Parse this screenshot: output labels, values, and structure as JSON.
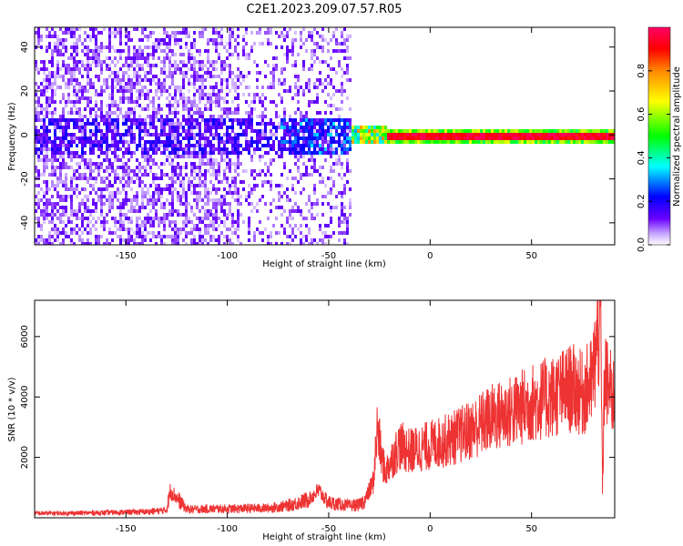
{
  "figure": {
    "title": "C2E1.2023.209.07.57.R05"
  },
  "chart_data": [
    {
      "type": "heatmap",
      "xlabel": "Height of straight line (km)",
      "ylabel": "Frequency (Hz)",
      "xlim": [
        -195,
        91
      ],
      "ylim": [
        -50,
        49
      ],
      "x_ticks": [
        -150,
        -100,
        -50,
        0,
        50
      ],
      "y_ticks": [
        -40,
        -20,
        0,
        20,
        40
      ],
      "colorbar": {
        "label": "Normalized spectral amplitude",
        "range": [
          0,
          1
        ],
        "ticks": [
          0.0,
          0.2,
          0.4,
          0.6,
          0.8
        ],
        "colors": [
          "#ffffff",
          "#c9a8ff",
          "#6a00ff",
          "#0000ff",
          "#00ffff",
          "#00ff00",
          "#ffff00",
          "#ff8800",
          "#ff0000",
          "#ff0066"
        ]
      },
      "description_regions": [
        {
          "x_range": [
            -195,
            -40
          ],
          "y_range": [
            -50,
            49
          ],
          "amplitude": "low scattered (0.05-0.2)"
        },
        {
          "x_range": [
            -75,
            -40
          ],
          "y_range": [
            -8,
            10
          ],
          "amplitude": "moderate (0.2-0.4)"
        },
        {
          "x_range": [
            -40,
            -20
          ],
          "y_range": [
            -3,
            5
          ],
          "amplitude": "rising (0.4-0.8)"
        },
        {
          "x_range": [
            -20,
            91
          ],
          "y_range": [
            -2,
            3
          ],
          "amplitude": "high (0.8-1.0) narrow band at 0 Hz"
        }
      ]
    },
    {
      "type": "line",
      "xlabel": "Height of straight line (km)",
      "ylabel": "SNR (10 * v/v)",
      "xlim": [
        -195,
        91
      ],
      "ylim": [
        0,
        7200
      ],
      "x_ticks": [
        -150,
        -100,
        -50,
        0,
        50
      ],
      "y_ticks": [
        2000,
        4000,
        6000
      ],
      "series": [
        {
          "color": "#ee3333",
          "x": [
            -195,
            -180,
            -160,
            -140,
            -130,
            -128,
            -120,
            -100,
            -80,
            -70,
            -60,
            -55,
            -50,
            -45,
            -40,
            -35,
            -32,
            -30,
            -28,
            -26,
            -24,
            -22,
            -20,
            -15,
            -10,
            0,
            10,
            20,
            30,
            40,
            50,
            60,
            70,
            75,
            80,
            84,
            85,
            86,
            88,
            91
          ],
          "y": [
            150,
            150,
            170,
            200,
            250,
            900,
            280,
            300,
            320,
            400,
            600,
            900,
            500,
            450,
            400,
            420,
            600,
            900,
            1200,
            3000,
            2000,
            1500,
            1800,
            2400,
            2200,
            2400,
            2600,
            2900,
            3300,
            3500,
            3800,
            4000,
            4300,
            4100,
            4500,
            6800,
            1000,
            4800,
            4200,
            4000
          ]
        }
      ]
    }
  ]
}
